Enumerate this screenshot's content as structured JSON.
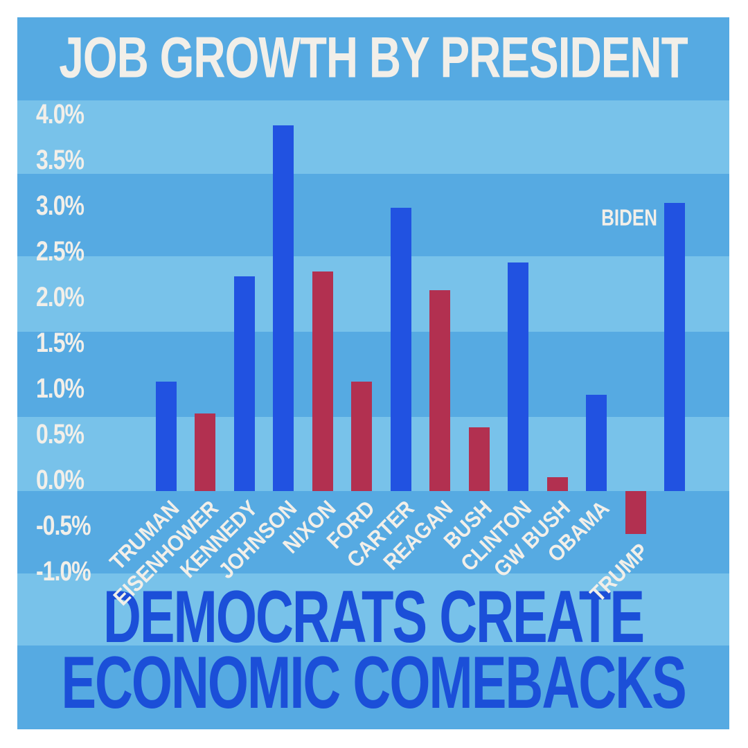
{
  "poster": {
    "title": "JOB GROWTH BY PRESIDENT",
    "footer_line1": "DEMOCRATS CREATE",
    "footer_line2": "ECONOMIC COMEBACKS",
    "biden_callout_label": "BIDEN"
  },
  "colors": {
    "page_margin": "#ffffff",
    "stripe_dark": "#56aae2",
    "stripe_light": "#78c2ea",
    "democrat_bar_blue": "#2152e1",
    "republican_bar_red": "#b23050",
    "axis_text_cream": "#f2efe9",
    "footer_text_blue": "#1b4fd8"
  },
  "chart_data": {
    "type": "bar",
    "title": "JOB GROWTH BY PRESIDENT",
    "xlabel": "",
    "ylabel": "",
    "units": "percent job growth",
    "ylim": [
      -1.0,
      4.0
    ],
    "ytick_values": [
      4.0,
      3.5,
      3.0,
      2.5,
      2.0,
      1.5,
      1.0,
      0.5,
      0.0,
      -0.5,
      -1.0
    ],
    "ytick_labels": [
      "4.0%",
      "3.5%",
      "3.0%",
      "2.5%",
      "2.0%",
      "1.5%",
      "1.0%",
      "0.5%",
      "0.0%",
      "-0.5%",
      "-1.0%"
    ],
    "grid": false,
    "legend": false,
    "categories": [
      "TRUMAN",
      "EISENHOWER",
      "KENNEDY",
      "JOHNSON",
      "NIXON",
      "FORD",
      "CARTER",
      "REAGAN",
      "BUSH",
      "CLINTON",
      "GW BUSH",
      "OBAMA",
      "TRUMP",
      "BIDEN"
    ],
    "values": [
      1.2,
      0.85,
      2.35,
      4.0,
      2.4,
      1.2,
      3.1,
      2.2,
      0.7,
      2.5,
      0.15,
      1.05,
      -0.47,
      3.15
    ],
    "parties": [
      "D",
      "R",
      "D",
      "D",
      "R",
      "R",
      "D",
      "R",
      "R",
      "D",
      "R",
      "D",
      "R",
      "D"
    ],
    "bar_color_by_party": {
      "D": "#2152e1",
      "R": "#b23050"
    },
    "x_label_style": "rotated 45deg below baseline",
    "biden_label_style": "horizontal, left of bar top"
  }
}
